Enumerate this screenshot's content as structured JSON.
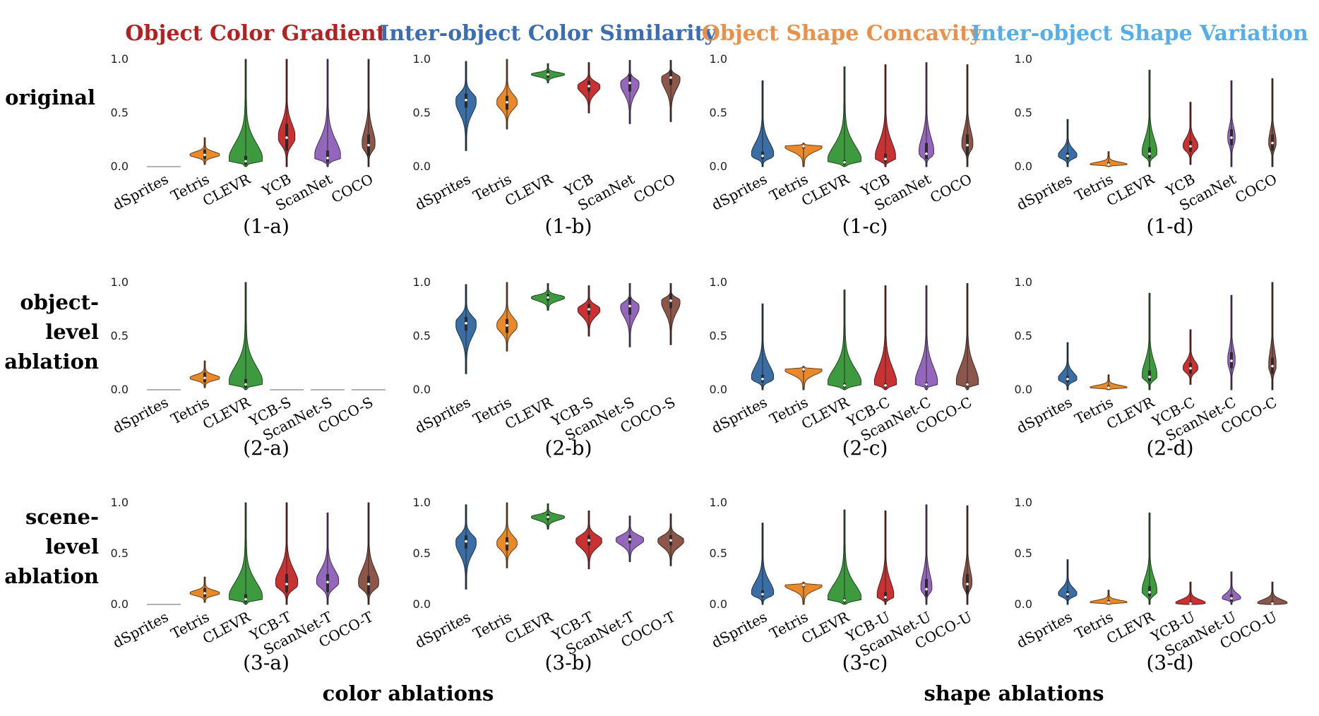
{
  "column_titles": [
    {
      "text": "Object Color Gradient",
      "color": "#b22222"
    },
    {
      "text": "Inter-object Color Similarity",
      "color": "#3a6db3"
    },
    {
      "text": "Object Shape Concavity",
      "color": "#e9914a"
    },
    {
      "text": "Inter-object Shape Variation",
      "color": "#55aee8"
    }
  ],
  "row_labels": [
    [
      "original"
    ],
    [
      "object-",
      "level",
      "ablation"
    ],
    [
      "scene-",
      "level",
      "ablation"
    ]
  ],
  "section_labels": [
    "color ablations",
    "shape ablations"
  ],
  "colors": [
    "#3a6ea5",
    "#e8892c",
    "#3e9a3e",
    "#c83232",
    "#9467bd",
    "#8c564b"
  ],
  "chart_data": [
    {
      "type": "violin",
      "label": "(1-a)",
      "ylim": [
        0,
        1
      ],
      "yticks": [
        "0.0",
        "0.5",
        "1.0"
      ],
      "categories": [
        "dSprites",
        "Tetris",
        "CLEVR",
        "YCB",
        "ScanNet",
        "COCO"
      ],
      "series": [
        {
          "median": 0.0,
          "min": 0.0,
          "max": 0.0,
          "q1": 0.0,
          "q3": 0.0,
          "width": 0.0
        },
        {
          "median": 0.11,
          "min": 0.02,
          "max": 0.27,
          "q1": 0.07,
          "q3": 0.16,
          "width": 0.8
        },
        {
          "median": 0.05,
          "min": 0.0,
          "max": 1.0,
          "q1": 0.02,
          "q3": 0.1,
          "width": 0.9
        },
        {
          "median": 0.27,
          "min": 0.0,
          "max": 1.0,
          "q1": 0.15,
          "q3": 0.4,
          "width": 0.45
        },
        {
          "median": 0.08,
          "min": 0.0,
          "max": 1.0,
          "q1": 0.04,
          "q3": 0.15,
          "width": 0.7
        },
        {
          "median": 0.2,
          "min": 0.0,
          "max": 1.0,
          "q1": 0.1,
          "q3": 0.3,
          "width": 0.35
        }
      ]
    },
    {
      "type": "violin",
      "label": "(1-b)",
      "ylim": [
        0,
        1
      ],
      "yticks": [
        "0.0",
        "0.5",
        "1.0"
      ],
      "categories": [
        "dSprites",
        "Tetris",
        "CLEVR",
        "YCB",
        "ScanNet",
        "COCO"
      ],
      "series": [
        {
          "median": 0.62,
          "min": 0.15,
          "max": 0.98,
          "q1": 0.55,
          "q3": 0.68,
          "width": 0.55
        },
        {
          "median": 0.6,
          "min": 0.35,
          "max": 1.0,
          "q1": 0.53,
          "q3": 0.66,
          "width": 0.55
        },
        {
          "median": 0.86,
          "min": 0.78,
          "max": 0.96,
          "q1": 0.83,
          "q3": 0.89,
          "width": 0.9
        },
        {
          "median": 0.75,
          "min": 0.5,
          "max": 0.97,
          "q1": 0.7,
          "q3": 0.8,
          "width": 0.6
        },
        {
          "median": 0.78,
          "min": 0.4,
          "max": 0.99,
          "q1": 0.7,
          "q3": 0.86,
          "width": 0.5
        },
        {
          "median": 0.83,
          "min": 0.42,
          "max": 0.99,
          "q1": 0.76,
          "q3": 0.9,
          "width": 0.5
        }
      ]
    },
    {
      "type": "violin",
      "label": "(1-c)",
      "ylim": [
        0,
        1
      ],
      "yticks": [
        "0.0",
        "0.5",
        "1.0"
      ],
      "categories": [
        "dSprites",
        "Tetris",
        "CLEVR",
        "YCB",
        "ScanNet",
        "COCO"
      ],
      "series": [
        {
          "median": 0.1,
          "min": 0.0,
          "max": 0.8,
          "q1": 0.07,
          "q3": 0.14,
          "width": 0.6
        },
        {
          "median": 0.19,
          "min": 0.0,
          "max": 0.22,
          "q1": 0.17,
          "q3": 0.2,
          "width": 1.0
        },
        {
          "median": 0.04,
          "min": 0.0,
          "max": 0.93,
          "q1": 0.02,
          "q3": 0.06,
          "width": 0.9
        },
        {
          "median": 0.07,
          "min": 0.0,
          "max": 0.95,
          "q1": 0.04,
          "q3": 0.12,
          "width": 0.55
        },
        {
          "median": 0.12,
          "min": 0.0,
          "max": 0.97,
          "q1": 0.07,
          "q3": 0.22,
          "width": 0.4
        },
        {
          "median": 0.2,
          "min": 0.0,
          "max": 0.95,
          "q1": 0.1,
          "q3": 0.3,
          "width": 0.3
        }
      ]
    },
    {
      "type": "violin",
      "label": "(1-d)",
      "ylim": [
        0,
        1
      ],
      "yticks": [
        "0.0",
        "0.5",
        "1.0"
      ],
      "categories": [
        "dSprites",
        "Tetris",
        "CLEVR",
        "YCB",
        "ScanNet",
        "COCO"
      ],
      "series": [
        {
          "median": 0.1,
          "min": 0.0,
          "max": 0.44,
          "q1": 0.07,
          "q3": 0.13,
          "width": 0.5
        },
        {
          "median": 0.02,
          "min": 0.0,
          "max": 0.14,
          "q1": 0.01,
          "q3": 0.04,
          "width": 1.0
        },
        {
          "median": 0.12,
          "min": 0.0,
          "max": 0.9,
          "q1": 0.08,
          "q3": 0.18,
          "width": 0.4
        },
        {
          "median": 0.19,
          "min": 0.02,
          "max": 0.6,
          "q1": 0.14,
          "q3": 0.24,
          "width": 0.4
        },
        {
          "median": 0.27,
          "min": 0.0,
          "max": 0.8,
          "q1": 0.2,
          "q3": 0.35,
          "width": 0.2
        },
        {
          "median": 0.22,
          "min": 0.0,
          "max": 0.82,
          "q1": 0.15,
          "q3": 0.3,
          "width": 0.2
        }
      ]
    },
    {
      "type": "violin",
      "label": "(2-a)",
      "ylim": [
        0,
        1
      ],
      "yticks": [
        "0.0",
        "0.5",
        "1.0"
      ],
      "categories": [
        "dSprites",
        "Tetris",
        "CLEVR",
        "YCB-S",
        "ScanNet-S",
        "COCO-S"
      ],
      "series": [
        {
          "median": 0.0,
          "min": 0.0,
          "max": 0.0,
          "q1": 0.0,
          "q3": 0.0,
          "width": 0.0
        },
        {
          "median": 0.11,
          "min": 0.02,
          "max": 0.27,
          "q1": 0.07,
          "q3": 0.16,
          "width": 0.8
        },
        {
          "median": 0.05,
          "min": 0.0,
          "max": 1.0,
          "q1": 0.02,
          "q3": 0.1,
          "width": 0.9
        },
        {
          "median": 0.0,
          "min": 0.0,
          "max": 0.0,
          "q1": 0.0,
          "q3": 0.0,
          "width": 0.0
        },
        {
          "median": 0.0,
          "min": 0.0,
          "max": 0.0,
          "q1": 0.0,
          "q3": 0.0,
          "width": 0.0
        },
        {
          "median": 0.0,
          "min": 0.0,
          "max": 0.0,
          "q1": 0.0,
          "q3": 0.0,
          "width": 0.0
        }
      ]
    },
    {
      "type": "violin",
      "label": "(2-b)",
      "ylim": [
        0,
        1
      ],
      "yticks": [
        "0.0",
        "0.5",
        "1.0"
      ],
      "categories": [
        "dSprites",
        "Tetris",
        "CLEVR",
        "YCB-S",
        "ScanNet-S",
        "COCO-S"
      ],
      "series": [
        {
          "median": 0.62,
          "min": 0.15,
          "max": 0.98,
          "q1": 0.55,
          "q3": 0.68,
          "width": 0.55
        },
        {
          "median": 0.6,
          "min": 0.36,
          "max": 1.0,
          "q1": 0.53,
          "q3": 0.66,
          "width": 0.55
        },
        {
          "median": 0.86,
          "min": 0.74,
          "max": 0.99,
          "q1": 0.83,
          "q3": 0.89,
          "width": 0.9
        },
        {
          "median": 0.75,
          "min": 0.5,
          "max": 0.97,
          "q1": 0.7,
          "q3": 0.8,
          "width": 0.6
        },
        {
          "median": 0.78,
          "min": 0.4,
          "max": 0.99,
          "q1": 0.7,
          "q3": 0.86,
          "width": 0.5
        },
        {
          "median": 0.83,
          "min": 0.42,
          "max": 0.99,
          "q1": 0.76,
          "q3": 0.9,
          "width": 0.5
        }
      ]
    },
    {
      "type": "violin",
      "label": "(2-c)",
      "ylim": [
        0,
        1
      ],
      "yticks": [
        "0.0",
        "0.5",
        "1.0"
      ],
      "categories": [
        "dSprites",
        "Tetris",
        "CLEVR",
        "YCB-C",
        "ScanNet-C",
        "COCO-C"
      ],
      "series": [
        {
          "median": 0.1,
          "min": 0.0,
          "max": 0.8,
          "q1": 0.07,
          "q3": 0.14,
          "width": 0.6
        },
        {
          "median": 0.19,
          "min": 0.0,
          "max": 0.22,
          "q1": 0.17,
          "q3": 0.2,
          "width": 1.0
        },
        {
          "median": 0.04,
          "min": 0.0,
          "max": 0.93,
          "q1": 0.02,
          "q3": 0.06,
          "width": 0.9
        },
        {
          "median": 0.04,
          "min": 0.0,
          "max": 0.97,
          "q1": 0.02,
          "q3": 0.06,
          "width": 0.6
        },
        {
          "median": 0.05,
          "min": 0.0,
          "max": 0.97,
          "q1": 0.03,
          "q3": 0.07,
          "width": 0.6
        },
        {
          "median": 0.05,
          "min": 0.0,
          "max": 0.99,
          "q1": 0.03,
          "q3": 0.07,
          "width": 0.6
        }
      ]
    },
    {
      "type": "violin",
      "label": "(2-d)",
      "ylim": [
        0,
        1
      ],
      "yticks": [
        "0.0",
        "0.5",
        "1.0"
      ],
      "categories": [
        "dSprites",
        "Tetris",
        "CLEVR",
        "YCB-C",
        "ScanNet-C",
        "COCO-C"
      ],
      "series": [
        {
          "median": 0.1,
          "min": 0.0,
          "max": 0.44,
          "q1": 0.07,
          "q3": 0.13,
          "width": 0.5
        },
        {
          "median": 0.02,
          "min": 0.0,
          "max": 0.14,
          "q1": 0.01,
          "q3": 0.04,
          "width": 1.0
        },
        {
          "median": 0.12,
          "min": 0.0,
          "max": 0.9,
          "q1": 0.08,
          "q3": 0.18,
          "width": 0.4
        },
        {
          "median": 0.2,
          "min": 0.05,
          "max": 0.56,
          "q1": 0.15,
          "q3": 0.25,
          "width": 0.4
        },
        {
          "median": 0.27,
          "min": 0.0,
          "max": 0.88,
          "q1": 0.2,
          "q3": 0.35,
          "width": 0.2
        },
        {
          "median": 0.22,
          "min": 0.0,
          "max": 1.0,
          "q1": 0.15,
          "q3": 0.3,
          "width": 0.2
        }
      ]
    },
    {
      "type": "violin",
      "label": "(3-a)",
      "ylim": [
        0,
        1
      ],
      "yticks": [
        "0.0",
        "0.5",
        "1.0"
      ],
      "categories": [
        "dSprites",
        "Tetris",
        "CLEVR",
        "YCB-T",
        "ScanNet-T",
        "COCO-T"
      ],
      "series": [
        {
          "median": 0.0,
          "min": 0.0,
          "max": 0.0,
          "q1": 0.0,
          "q3": 0.0,
          "width": 0.0
        },
        {
          "median": 0.11,
          "min": 0.02,
          "max": 0.27,
          "q1": 0.07,
          "q3": 0.16,
          "width": 0.8
        },
        {
          "median": 0.05,
          "min": 0.0,
          "max": 1.0,
          "q1": 0.02,
          "q3": 0.1,
          "width": 0.9
        },
        {
          "median": 0.2,
          "min": 0.0,
          "max": 1.0,
          "q1": 0.12,
          "q3": 0.3,
          "width": 0.6
        },
        {
          "median": 0.22,
          "min": 0.0,
          "max": 0.9,
          "q1": 0.12,
          "q3": 0.3,
          "width": 0.6
        },
        {
          "median": 0.2,
          "min": 0.0,
          "max": 1.0,
          "q1": 0.1,
          "q3": 0.28,
          "width": 0.55
        }
      ]
    },
    {
      "type": "violin",
      "label": "(3-b)",
      "ylim": [
        0,
        1
      ],
      "yticks": [
        "0.0",
        "0.5",
        "1.0"
      ],
      "categories": [
        "dSprites",
        "Tetris",
        "CLEVR",
        "YCB-T",
        "ScanNet-T",
        "COCO-T"
      ],
      "series": [
        {
          "median": 0.62,
          "min": 0.15,
          "max": 0.98,
          "q1": 0.55,
          "q3": 0.68,
          "width": 0.55
        },
        {
          "median": 0.6,
          "min": 0.36,
          "max": 1.0,
          "q1": 0.53,
          "q3": 0.66,
          "width": 0.55
        },
        {
          "median": 0.86,
          "min": 0.74,
          "max": 0.99,
          "q1": 0.83,
          "q3": 0.89,
          "width": 0.9
        },
        {
          "median": 0.63,
          "min": 0.35,
          "max": 0.92,
          "q1": 0.58,
          "q3": 0.68,
          "width": 0.7
        },
        {
          "median": 0.64,
          "min": 0.42,
          "max": 0.87,
          "q1": 0.6,
          "q3": 0.68,
          "width": 0.75
        },
        {
          "median": 0.63,
          "min": 0.38,
          "max": 0.89,
          "q1": 0.58,
          "q3": 0.68,
          "width": 0.7
        }
      ]
    },
    {
      "type": "violin",
      "label": "(3-c)",
      "ylim": [
        0,
        1
      ],
      "yticks": [
        "0.0",
        "0.5",
        "1.0"
      ],
      "categories": [
        "dSprites",
        "Tetris",
        "CLEVR",
        "YCB-U",
        "ScanNet-U",
        "COCO-U"
      ],
      "series": [
        {
          "median": 0.1,
          "min": 0.0,
          "max": 0.8,
          "q1": 0.07,
          "q3": 0.14,
          "width": 0.6
        },
        {
          "median": 0.19,
          "min": 0.0,
          "max": 0.22,
          "q1": 0.17,
          "q3": 0.2,
          "width": 1.0
        },
        {
          "median": 0.04,
          "min": 0.0,
          "max": 0.93,
          "q1": 0.02,
          "q3": 0.06,
          "width": 0.9
        },
        {
          "median": 0.07,
          "min": 0.0,
          "max": 0.92,
          "q1": 0.04,
          "q3": 0.12,
          "width": 0.45
        },
        {
          "median": 0.15,
          "min": 0.0,
          "max": 0.98,
          "q1": 0.08,
          "q3": 0.25,
          "width": 0.3
        },
        {
          "median": 0.2,
          "min": 0.0,
          "max": 0.97,
          "q1": 0.1,
          "q3": 0.3,
          "width": 0.25
        }
      ]
    },
    {
      "type": "violin",
      "label": "(3-d)",
      "ylim": [
        0,
        1
      ],
      "yticks": [
        "0.0",
        "0.5",
        "1.0"
      ],
      "categories": [
        "dSprites",
        "Tetris",
        "CLEVR",
        "YCB-U",
        "ScanNet-U",
        "COCO-U"
      ],
      "series": [
        {
          "median": 0.1,
          "min": 0.0,
          "max": 0.44,
          "q1": 0.07,
          "q3": 0.13,
          "width": 0.5
        },
        {
          "median": 0.02,
          "min": 0.0,
          "max": 0.14,
          "q1": 0.01,
          "q3": 0.04,
          "width": 1.0
        },
        {
          "median": 0.12,
          "min": 0.0,
          "max": 0.9,
          "q1": 0.08,
          "q3": 0.18,
          "width": 0.4
        },
        {
          "median": 0.01,
          "min": 0.0,
          "max": 0.22,
          "q1": 0.0,
          "q3": 0.03,
          "width": 0.8
        },
        {
          "median": 0.06,
          "min": 0.0,
          "max": 0.32,
          "q1": 0.03,
          "q3": 0.1,
          "width": 0.5
        },
        {
          "median": 0.01,
          "min": 0.0,
          "max": 0.22,
          "q1": 0.0,
          "q3": 0.03,
          "width": 0.8
        }
      ]
    }
  ]
}
